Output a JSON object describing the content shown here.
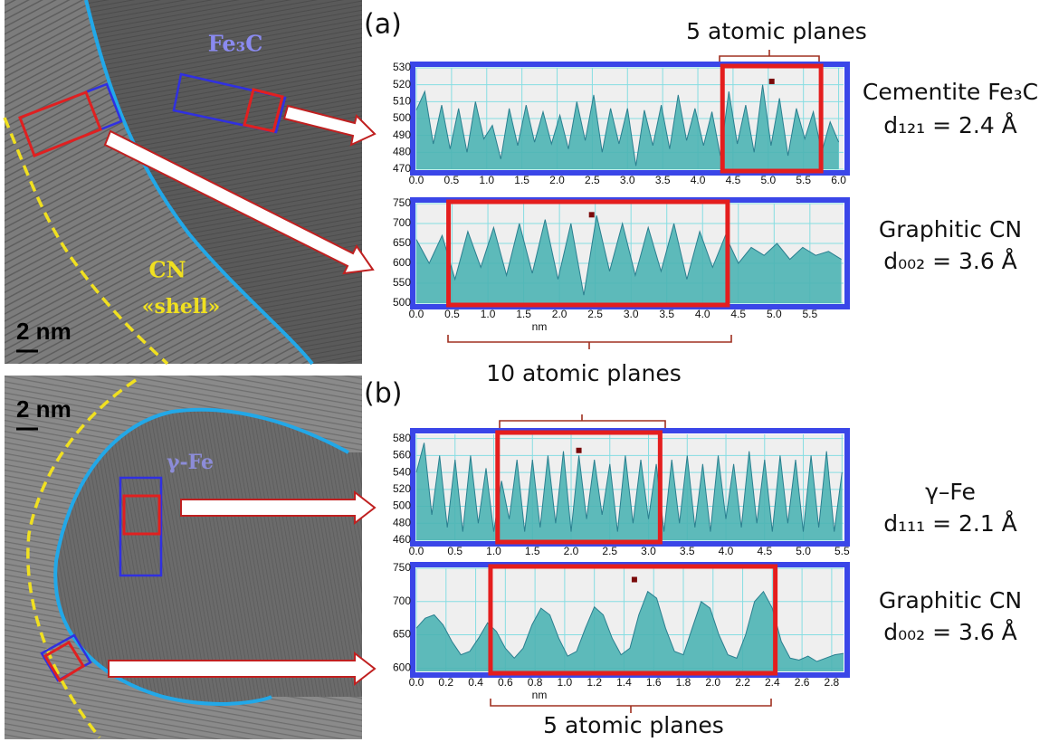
{
  "labels": {
    "panel_a": "(a)",
    "panel_b": "(b)",
    "top_planes": "5 atomic planes",
    "mid_planes": "10 atomic planes",
    "bottom_planes": "5 atomic planes"
  },
  "images": [
    {
      "phase": "Fe₃C",
      "shell": "CN",
      "shell_word": "«shell»",
      "scale": "2 nm"
    },
    {
      "phase": "γ-Fe",
      "scale": "2 nm"
    }
  ],
  "descriptions": [
    {
      "name": "Cementite Fe₃C",
      "spacing": "d₁₂₁ = 2.4 Å"
    },
    {
      "name": "Graphitic CN",
      "spacing": "d₀₀₂ = 3.6 Å"
    },
    {
      "name": "γ–Fe",
      "spacing": "d₁₁₁ = 2.1 Å"
    },
    {
      "name": "Graphitic CN",
      "spacing": "d₀₀₂ = 3.6 Å"
    }
  ],
  "chart_data": [
    {
      "type": "area",
      "color": "#4cb4b4",
      "grid": true,
      "xlim": [
        0,
        6.07
      ],
      "ylim": [
        470,
        530
      ],
      "xticks": [
        {
          "value": 0,
          "label": "0.0"
        },
        0.5,
        {
          "value": 1,
          "label": "1.0"
        },
        1.5,
        {
          "value": 2,
          "label": "2.0"
        },
        2.5,
        {
          "value": 3,
          "label": "3.0"
        },
        3.5,
        {
          "value": 4,
          "label": "4.0"
        },
        4.5,
        {
          "value": 5,
          "label": "5.0"
        },
        5.5,
        {
          "value": 6,
          "label": "6.0"
        }
      ],
      "yticks": [
        470,
        480,
        490,
        500,
        510,
        520,
        530
      ],
      "x": [
        0,
        0.12,
        0.24,
        0.36,
        0.48,
        0.6,
        0.72,
        0.84,
        0.96,
        1.08,
        1.2,
        1.32,
        1.44,
        1.56,
        1.68,
        1.8,
        1.92,
        2.04,
        2.16,
        2.28,
        2.4,
        2.52,
        2.64,
        2.76,
        2.88,
        3,
        3.12,
        3.24,
        3.36,
        3.48,
        3.6,
        3.72,
        3.84,
        3.96,
        4.08,
        4.2,
        4.32,
        4.44,
        4.56,
        4.68,
        4.8,
        4.92,
        5.04,
        5.16,
        5.28,
        5.4,
        5.52,
        5.64,
        5.76,
        5.88,
        6
      ],
      "values": [
        505,
        516,
        485,
        508,
        482,
        506,
        480,
        510,
        488,
        496,
        476,
        506,
        484,
        508,
        486,
        504,
        485,
        502,
        482,
        510,
        487,
        514,
        480,
        506,
        485,
        506,
        472,
        505,
        484,
        508,
        482,
        514,
        487,
        506,
        484,
        504,
        478,
        516,
        485,
        508,
        480,
        520,
        484,
        512,
        478,
        506,
        488,
        504,
        480,
        498,
        486
      ],
      "highlight": [
        4.35,
        5.75
      ],
      "marker": [
        5.05,
        522
      ]
    },
    {
      "type": "area",
      "color": "#4cb4b4",
      "grid": true,
      "x_label": "nm",
      "xlim": [
        0,
        5.97
      ],
      "ylim": [
        500,
        750
      ],
      "xticks": [
        {
          "value": 0,
          "label": "0.0"
        },
        0.5,
        {
          "value": 1,
          "label": "1.0"
        },
        1.5,
        {
          "value": 2,
          "label": "2.0"
        },
        2.5,
        {
          "value": 3,
          "label": "3.0"
        },
        3.5,
        {
          "value": 4,
          "label": "4.0"
        },
        4.5,
        {
          "value": 5,
          "label": "5.0"
        },
        5.5
      ],
      "yticks": [
        500,
        550,
        600,
        650,
        700,
        750
      ],
      "x": [
        0,
        0.18,
        0.36,
        0.54,
        0.72,
        0.9,
        1.08,
        1.26,
        1.44,
        1.62,
        1.8,
        1.98,
        2.16,
        2.34,
        2.52,
        2.7,
        2.88,
        3.06,
        3.24,
        3.42,
        3.6,
        3.78,
        3.96,
        4.14,
        4.32,
        4.5,
        4.68,
        4.86,
        5.04,
        5.22,
        5.4,
        5.58,
        5.76,
        5.94
      ],
      "values": [
        660,
        600,
        670,
        560,
        680,
        590,
        690,
        570,
        700,
        575,
        710,
        560,
        700,
        520,
        720,
        580,
        700,
        570,
        690,
        580,
        700,
        560,
        680,
        590,
        670,
        600,
        640,
        620,
        650,
        610,
        640,
        620,
        630,
        610
      ],
      "highlight": [
        0.45,
        4.35
      ],
      "marker": [
        2.45,
        722
      ]
    },
    {
      "type": "area",
      "color": "#4cb4b4",
      "grid": true,
      "xlim": [
        0,
        5.52
      ],
      "ylim": [
        460,
        585
      ],
      "xticks": [
        {
          "value": 0,
          "label": "0.0"
        },
        0.5,
        {
          "value": 1,
          "label": "1.0"
        },
        1.5,
        {
          "value": 2,
          "label": "2.0"
        },
        2.5,
        {
          "value": 3,
          "label": "3.0"
        },
        3.5,
        {
          "value": 4,
          "label": "4.0"
        },
        4.5,
        {
          "value": 5,
          "label": "5.0"
        },
        5.5
      ],
      "yticks": [
        460,
        480,
        500,
        520,
        540,
        560,
        580
      ],
      "x": [
        0,
        0.1,
        0.2,
        0.3,
        0.4,
        0.5,
        0.6,
        0.7,
        0.8,
        0.9,
        1,
        1.1,
        1.2,
        1.3,
        1.4,
        1.5,
        1.6,
        1.7,
        1.8,
        1.9,
        2,
        2.1,
        2.2,
        2.3,
        2.4,
        2.5,
        2.6,
        2.7,
        2.8,
        2.9,
        3,
        3.1,
        3.2,
        3.3,
        3.4,
        3.5,
        3.6,
        3.7,
        3.8,
        3.9,
        4,
        4.1,
        4.2,
        4.3,
        4.4,
        4.5,
        4.6,
        4.7,
        4.8,
        4.9,
        5,
        5.1,
        5.2,
        5.3,
        5.4,
        5.5
      ],
      "values": [
        540,
        575,
        490,
        560,
        475,
        555,
        470,
        560,
        480,
        545,
        470,
        530,
        485,
        555,
        470,
        555,
        475,
        560,
        480,
        565,
        470,
        560,
        485,
        555,
        490,
        550,
        470,
        560,
        480,
        555,
        485,
        550,
        470,
        555,
        480,
        560,
        475,
        550,
        470,
        560,
        485,
        550,
        475,
        565,
        480,
        555,
        470,
        560,
        480,
        555,
        470,
        560,
        475,
        565,
        470,
        540
      ],
      "highlight": [
        1.05,
        3.15
      ],
      "marker": [
        2.1,
        566
      ]
    },
    {
      "type": "area",
      "color": "#4cb4b4",
      "grid": true,
      "x_label": "nm",
      "xlim": [
        0,
        2.88
      ],
      "ylim": [
        595,
        750
      ],
      "xticks": [
        {
          "value": 0,
          "label": "0.0"
        },
        0.2,
        0.4,
        0.6,
        0.8,
        {
          "value": 1,
          "label": "1.0"
        },
        1.2,
        1.4,
        1.6,
        1.8,
        {
          "value": 2,
          "label": "2.0"
        },
        2.2,
        2.4,
        2.6,
        2.8
      ],
      "yticks": [
        600,
        650,
        700,
        750
      ],
      "x": [
        0,
        0.06,
        0.12,
        0.18,
        0.24,
        0.3,
        0.36,
        0.42,
        0.48,
        0.54,
        0.6,
        0.66,
        0.72,
        0.78,
        0.84,
        0.9,
        0.96,
        1.02,
        1.08,
        1.14,
        1.2,
        1.26,
        1.32,
        1.38,
        1.44,
        1.5,
        1.56,
        1.62,
        1.68,
        1.74,
        1.8,
        1.86,
        1.92,
        1.98,
        2.04,
        2.1,
        2.16,
        2.22,
        2.28,
        2.34,
        2.4,
        2.46,
        2.52,
        2.58,
        2.64,
        2.7,
        2.76,
        2.82,
        2.88
      ],
      "values": [
        660,
        675,
        680,
        665,
        640,
        620,
        625,
        645,
        668,
        655,
        630,
        615,
        630,
        665,
        690,
        680,
        645,
        618,
        625,
        660,
        692,
        680,
        645,
        620,
        630,
        680,
        715,
        705,
        660,
        625,
        620,
        660,
        700,
        690,
        650,
        620,
        615,
        650,
        700,
        715,
        690,
        640,
        615,
        612,
        618,
        610,
        615,
        620,
        622
      ],
      "highlight": [
        0.5,
        2.42
      ],
      "marker": [
        1.47,
        733
      ]
    }
  ]
}
